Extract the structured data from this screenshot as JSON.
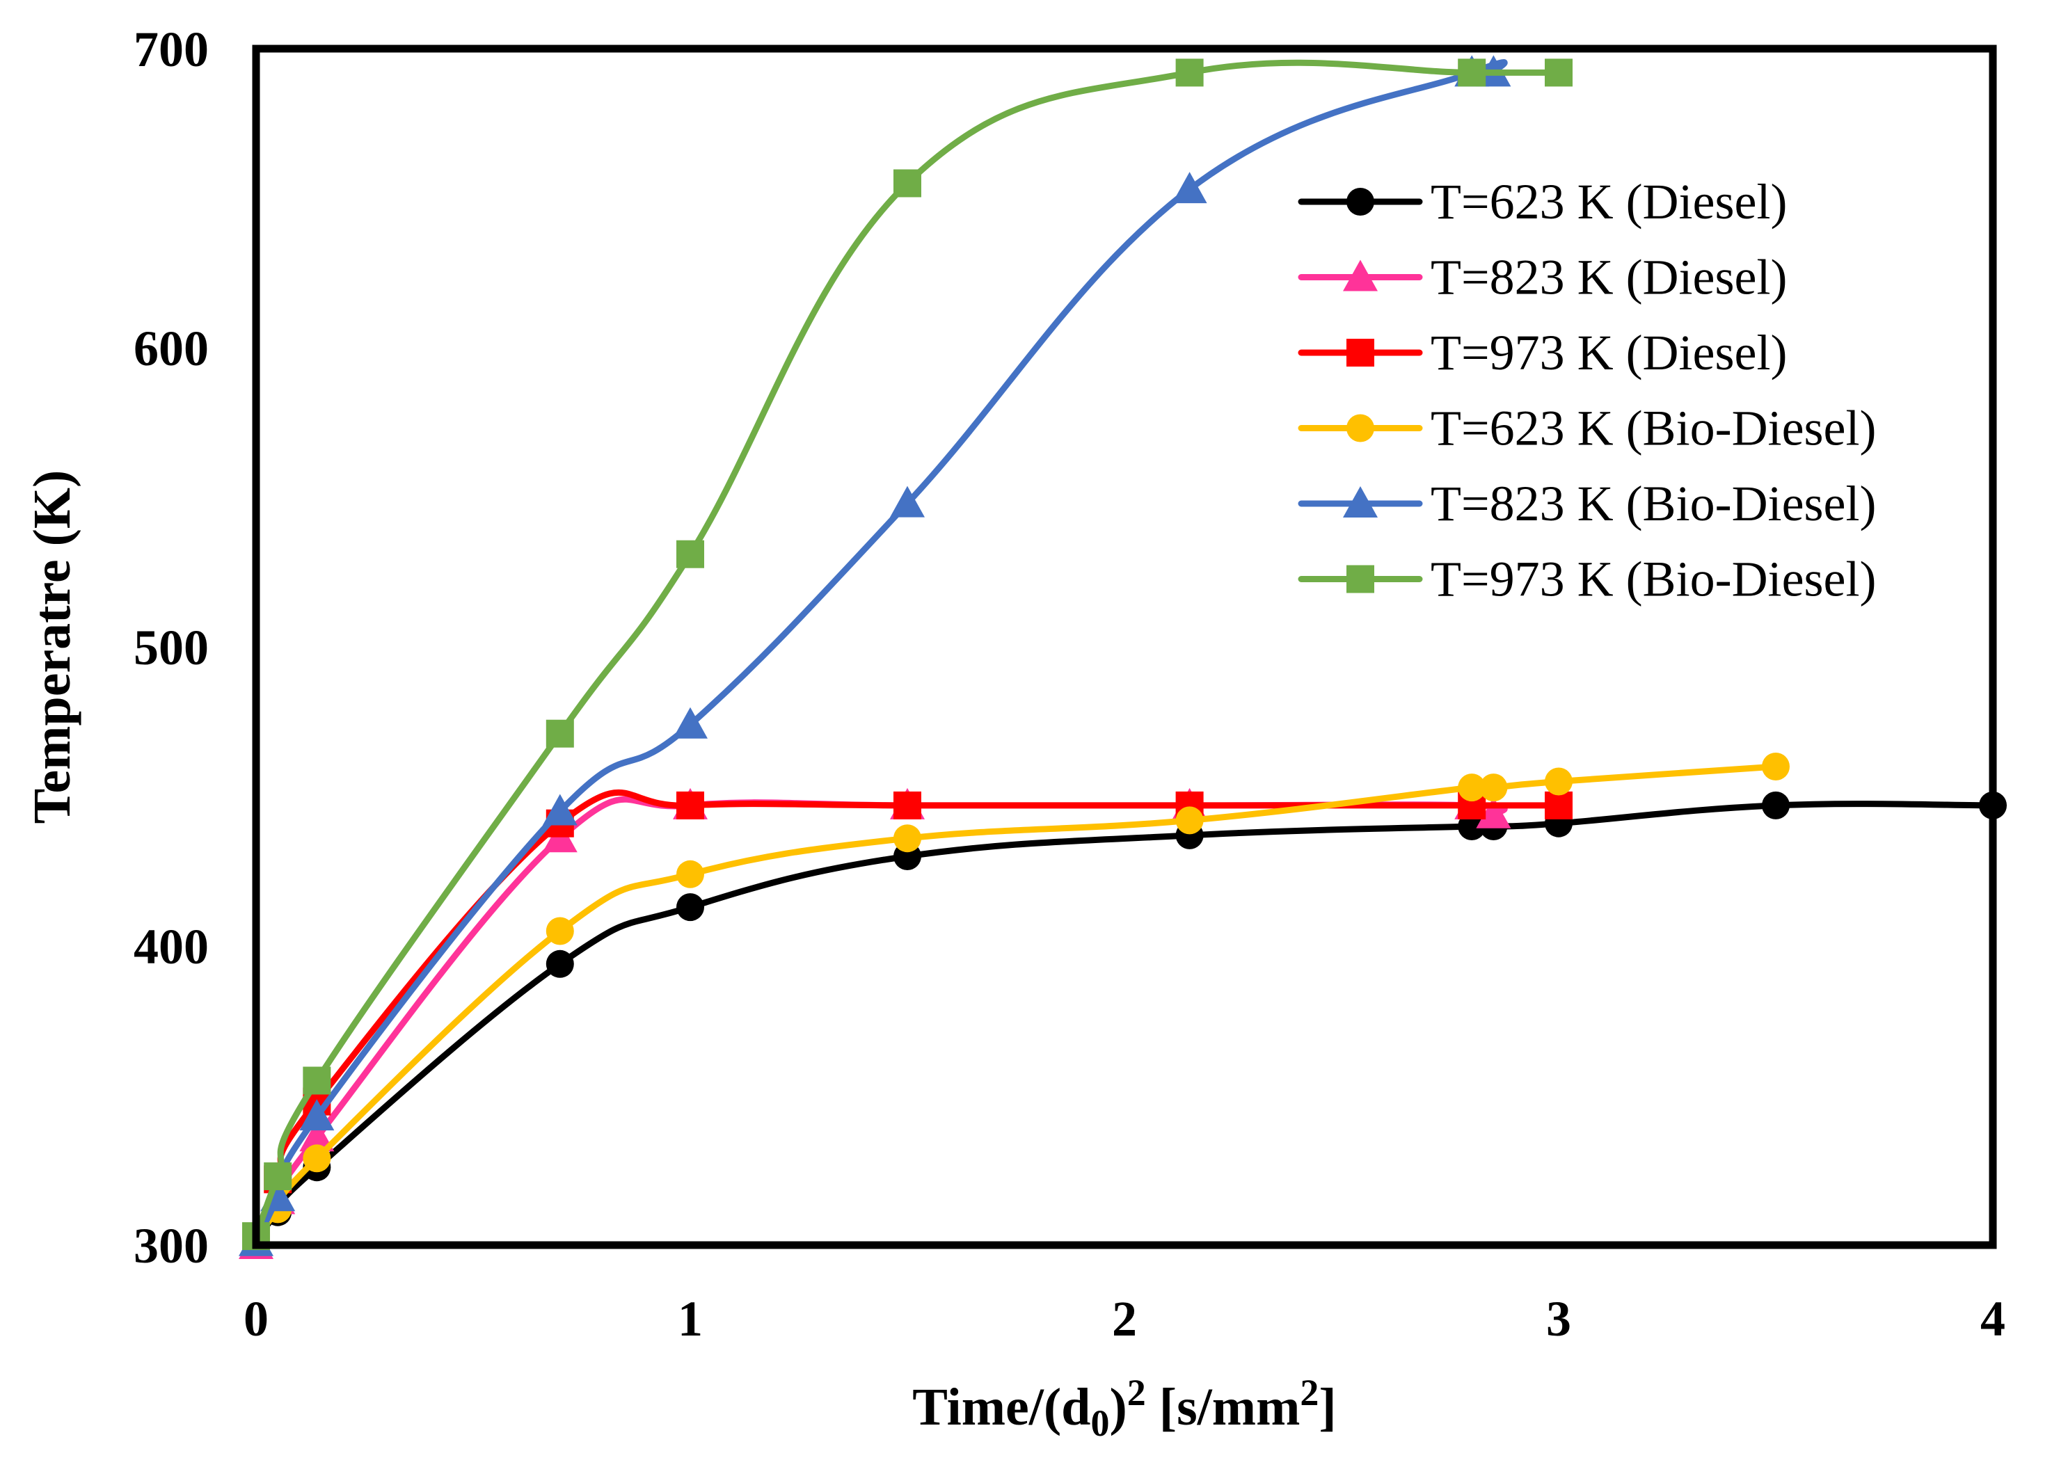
{
  "chart_data": {
    "type": "line",
    "title": "",
    "xlabel": "Time/(d0)2 [s/mm2]",
    "xlabel_parts": {
      "main": "Time/(d",
      "sub": "0",
      "close": ")",
      "sup1": "2",
      "mid": " [s/mm",
      "sup2": "2",
      "end": "]"
    },
    "ylabel": "Temperatre (K)",
    "xlim": [
      0,
      4
    ],
    "ylim": [
      300,
      700
    ],
    "xticks": [
      0,
      1,
      2,
      3,
      4
    ],
    "yticks": [
      300,
      400,
      500,
      600,
      700
    ],
    "xtick_labels": [
      "0",
      "1",
      "2",
      "3",
      "4"
    ],
    "ytick_labels": [
      "300",
      "400",
      "500",
      "600",
      "700"
    ],
    "grid": false,
    "legend_position": "top-right",
    "series": [
      {
        "name": "T=623 K (Diesel)",
        "color": "#000000",
        "marker": "circle",
        "x": [
          0,
          0.05,
          0.14,
          0.7,
          1.0,
          1.5,
          2.15,
          2.8,
          2.85,
          3.0,
          3.5,
          4.0
        ],
        "y": [
          302,
          311,
          326,
          394,
          413,
          430,
          437,
          440,
          440,
          441,
          447,
          447
        ]
      },
      {
        "name": "T=823 K (Diesel)",
        "color": "#FF3399",
        "marker": "triangle",
        "x": [
          0,
          0.05,
          0.14,
          0.7,
          1.0,
          1.5,
          2.15,
          2.8,
          2.85
        ],
        "y": [
          300,
          315,
          336,
          436,
          447,
          447,
          447,
          447,
          444
        ]
      },
      {
        "name": "T=973 K (Diesel)",
        "color": "#FF0000",
        "marker": "square",
        "x": [
          0,
          0.05,
          0.14,
          0.7,
          1.0,
          1.5,
          2.15,
          2.8,
          3.0
        ],
        "y": [
          302,
          322,
          348,
          441,
          447,
          447,
          447,
          447,
          447
        ]
      },
      {
        "name": "T=623 K (Bio-Diesel)",
        "color": "#FFC000",
        "marker": "circle",
        "x": [
          0,
          0.05,
          0.14,
          0.7,
          1.0,
          1.5,
          2.15,
          2.8,
          2.85,
          3.0,
          3.5
        ],
        "y": [
          302,
          312,
          329,
          405,
          424,
          436,
          442,
          453,
          453,
          455,
          460
        ]
      },
      {
        "name": "T=823 K (Bio-Diesel)",
        "color": "#4472C4",
        "marker": "triangle",
        "x": [
          0,
          0.05,
          0.14,
          0.7,
          1.0,
          1.5,
          2.15,
          2.8,
          2.85
        ],
        "y": [
          301,
          316,
          343,
          445,
          474,
          548,
          653,
          692,
          692
        ]
      },
      {
        "name": "T=973 K (Bio-Diesel)",
        "color": "#70AD47",
        "marker": "square",
        "x": [
          0,
          0.05,
          0.14,
          0.7,
          1.0,
          1.5,
          2.15,
          2.8,
          3.0
        ],
        "y": [
          303,
          323,
          355,
          471,
          531,
          655,
          692,
          692,
          692
        ]
      }
    ]
  }
}
